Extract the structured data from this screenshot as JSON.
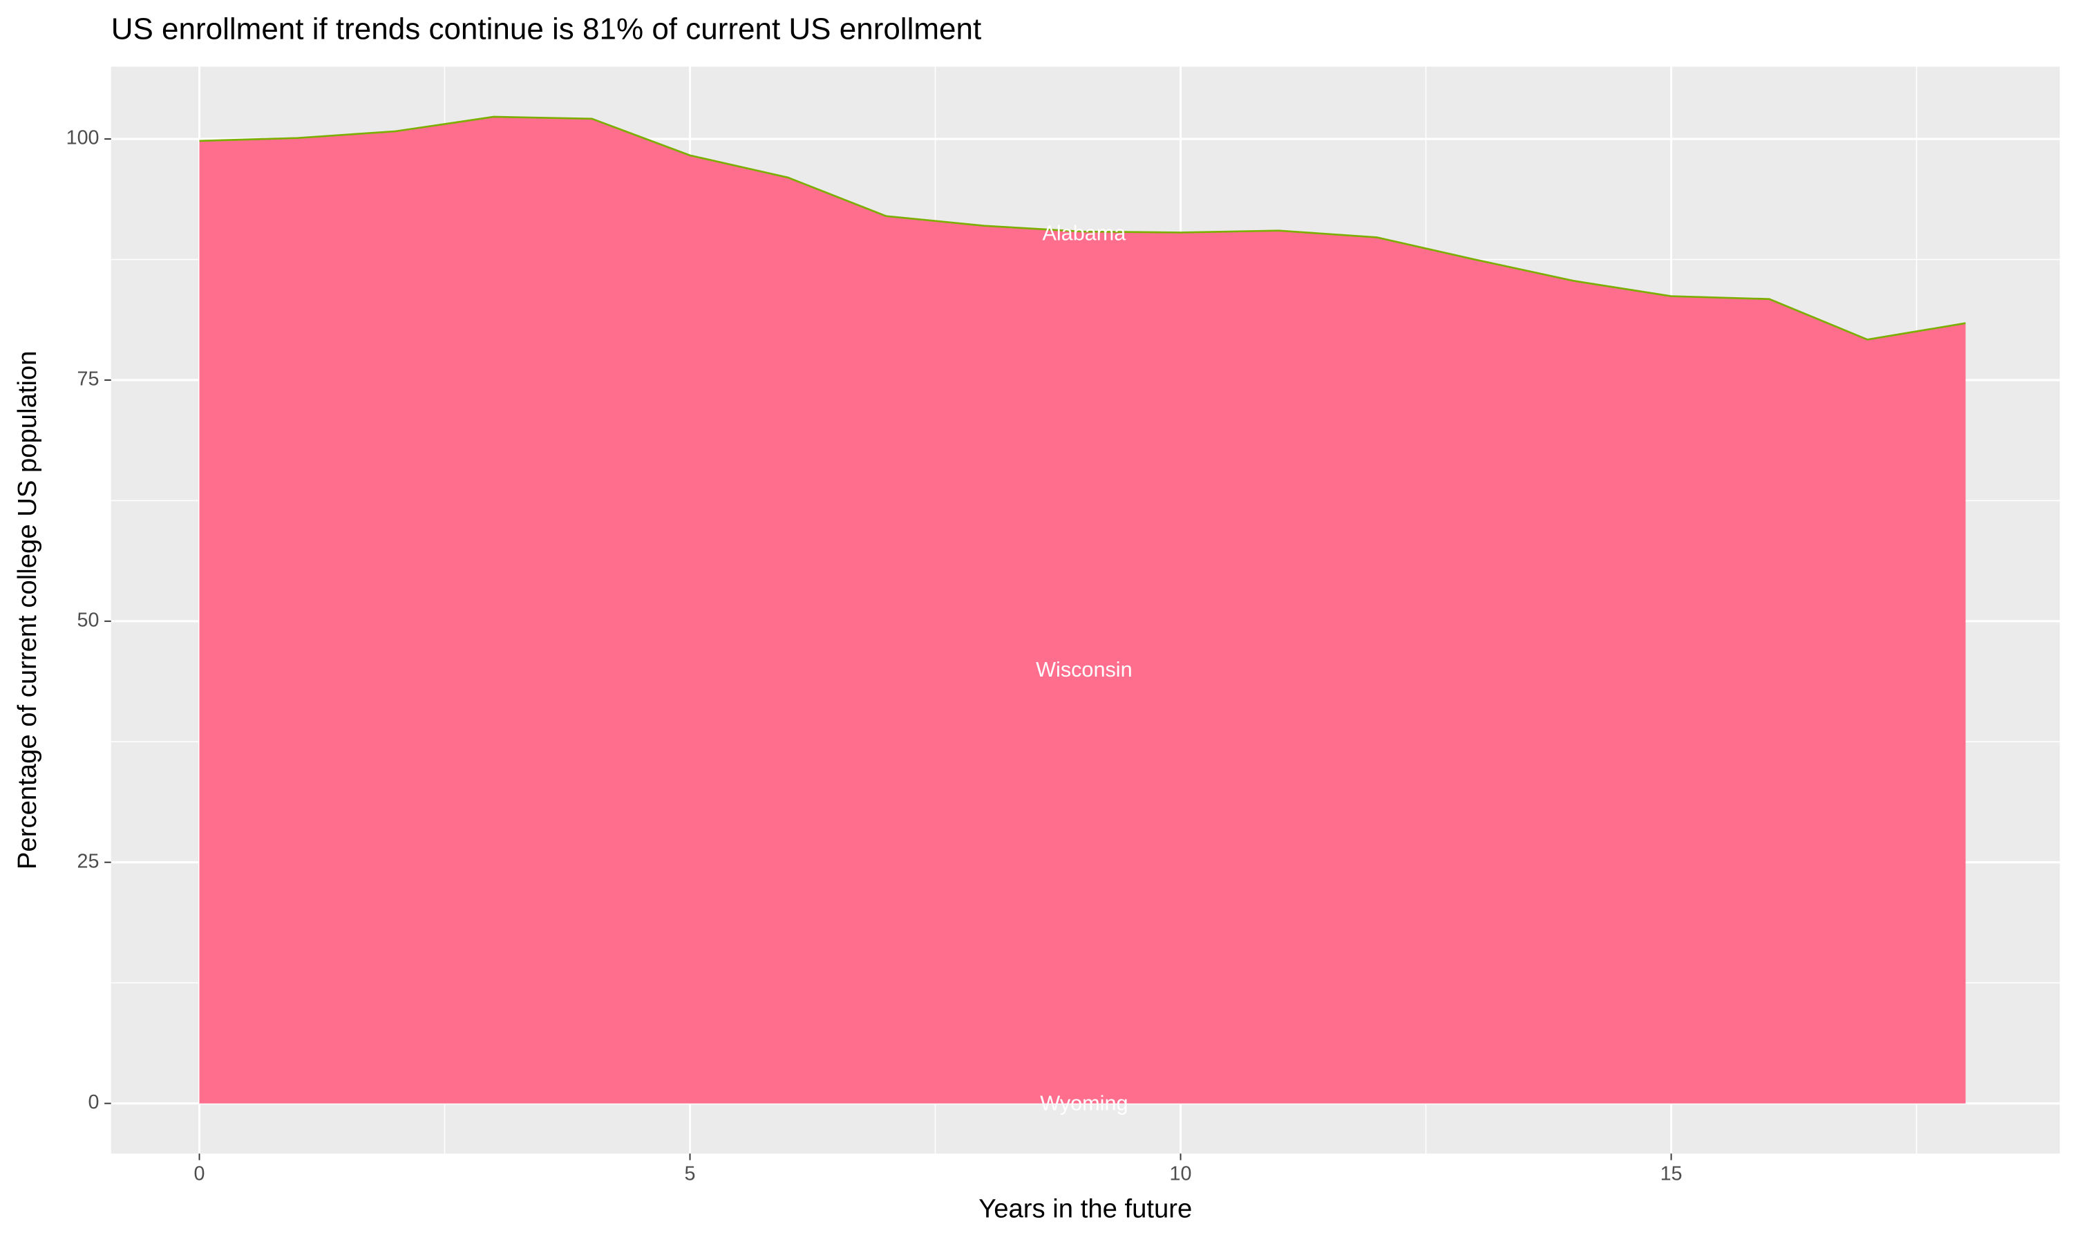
{
  "chart_data": {
    "type": "area",
    "title": "US enrollment if trends continue is 81% of current US enrollment",
    "x_label": "Years in the future",
    "y_label": "Percentage of current college US population",
    "x": [
      0,
      1,
      2,
      3,
      4,
      5,
      6,
      7,
      8,
      9,
      10,
      11,
      12,
      13,
      14,
      15,
      16,
      17,
      18
    ],
    "values": [
      99.8,
      100.1,
      100.8,
      102.3,
      102.1,
      98.3,
      96.0,
      92.0,
      91.0,
      90.4,
      90.3,
      90.5,
      89.8,
      87.5,
      85.3,
      83.7,
      83.4,
      79.2,
      80.9
    ],
    "color": "#ff6e8d",
    "line_color": "#7cae00",
    "annotations": [
      "Alabama",
      "Wisconsin",
      "Wyoming"
    ],
    "xlim": [
      -0.9,
      18.96
    ],
    "ylim": [
      -5.2,
      107.5
    ],
    "xticks": [
      0,
      5,
      10,
      15
    ],
    "yticks": [
      0,
      25,
      50,
      75,
      100
    ],
    "xminor": [
      2.5,
      7.5,
      12.5,
      17.5
    ],
    "yminor": [
      12.5,
      37.5,
      62.5,
      87.5
    ],
    "grid": true
  }
}
